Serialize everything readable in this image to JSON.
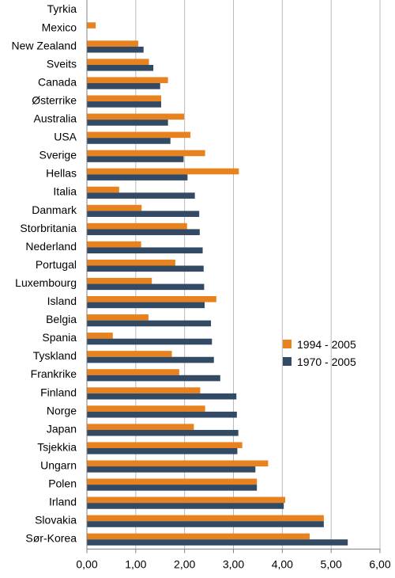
{
  "chart_data": {
    "type": "bar",
    "orientation": "horizontal",
    "categories": [
      "Tyrkia",
      "Mexico",
      "New Zealand",
      "Sveits",
      "Canada",
      "Østerrike",
      "Australia",
      "USA",
      "Sverige",
      "Hellas",
      "Italia",
      "Danmark",
      "Storbritania",
      "Nederland",
      "Portugal",
      "Luxembourg",
      "Island",
      "Belgia",
      "Spania",
      "Tyskland",
      "Frankrike",
      "Finland",
      "Norge",
      "Japan",
      "Tsjekkia",
      "Ungarn",
      "Polen",
      "Irland",
      "Slovakia",
      "Sør-Korea"
    ],
    "series": [
      {
        "name": "1994 - 2005",
        "color": "#e8821e",
        "values": [
          0.0,
          0.18,
          1.05,
          1.27,
          1.66,
          1.52,
          1.99,
          2.12,
          2.42,
          3.11,
          0.66,
          1.12,
          2.05,
          1.11,
          1.81,
          1.33,
          2.65,
          1.26,
          0.53,
          1.74,
          1.89,
          2.32,
          2.42,
          2.19,
          3.18,
          3.71,
          3.48,
          4.06,
          4.85,
          4.56
        ]
      },
      {
        "name": "1970 - 2005",
        "color": "#324a64",
        "values": [
          0.0,
          0.0,
          1.16,
          1.36,
          1.5,
          1.52,
          1.66,
          1.71,
          1.98,
          2.06,
          2.21,
          2.3,
          2.31,
          2.37,
          2.39,
          2.4,
          2.41,
          2.54,
          2.56,
          2.6,
          2.73,
          3.06,
          3.07,
          3.1,
          3.08,
          3.45,
          3.48,
          4.03,
          4.85,
          5.34
        ]
      }
    ],
    "x_ticks": [
      "0,00",
      "1,00",
      "2,00",
      "3,00",
      "4,00",
      "5,00",
      "6,00"
    ],
    "xlim": [
      0,
      6
    ],
    "grid": "vertical",
    "legend_position": "right",
    "title": "",
    "xlabel": "",
    "ylabel": ""
  }
}
